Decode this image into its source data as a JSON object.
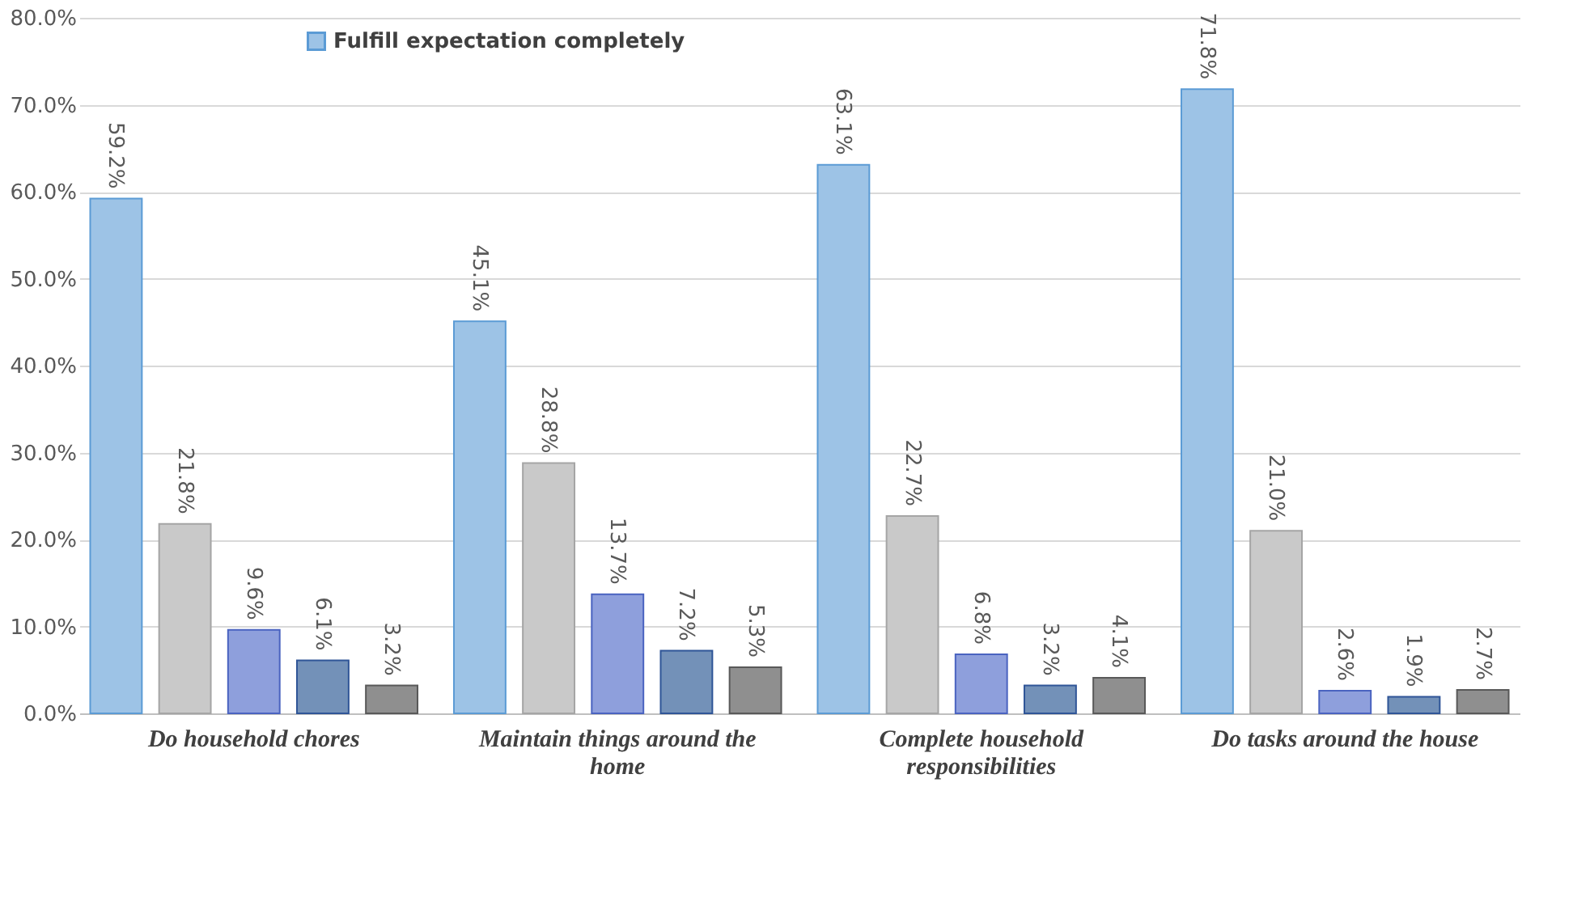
{
  "chart_data": {
    "type": "bar",
    "categories": [
      "Do household chores",
      "Maintain things around the home",
      "Complete household responsibilities",
      "Do tasks around the house"
    ],
    "series": [
      {
        "name": "Fulfill expectation completely",
        "color": "#9dc3e6",
        "values": [
          59.2,
          45.1,
          63.1,
          71.8
        ],
        "value_labels": [
          "59.2%",
          "45.1%",
          "63.1%",
          "71.8%"
        ]
      },
      {
        "color": "#c9c9c9",
        "values": [
          21.8,
          28.8,
          22.7,
          21.0
        ],
        "value_labels": [
          "21.8%",
          "28.8%",
          "22.7%",
          "21.0%"
        ]
      },
      {
        "color": "#8e9fdc",
        "values": [
          9.6,
          13.7,
          6.8,
          2.6
        ],
        "value_labels": [
          "9.6%",
          "13.7%",
          "6.8%",
          "2.6%"
        ]
      },
      {
        "color": "#7391b8",
        "values": [
          6.1,
          7.2,
          3.2,
          1.9
        ],
        "value_labels": [
          "6.1%",
          "7.2%",
          "3.2%",
          "1.9%"
        ]
      },
      {
        "color": "#8f8f8f",
        "values": [
          3.2,
          5.3,
          4.1,
          2.7
        ],
        "value_labels": [
          "3.2%",
          "5.3%",
          "4.1%",
          "2.7%"
        ]
      }
    ],
    "ylim": [
      0,
      80
    ],
    "yticks": [
      {
        "value": 0,
        "label": "0.0%"
      },
      {
        "value": 10,
        "label": "10.0%"
      },
      {
        "value": 20,
        "label": "20.0%"
      },
      {
        "value": 30,
        "label": "30.0%"
      },
      {
        "value": 40,
        "label": "40.0%"
      },
      {
        "value": 50,
        "label": "50.0%"
      },
      {
        "value": 60,
        "label": "60.0%"
      },
      {
        "value": 70,
        "label": "70.0%"
      },
      {
        "value": 80,
        "label": "80.0%"
      }
    ],
    "grid": "y",
    "legend": "top left"
  }
}
